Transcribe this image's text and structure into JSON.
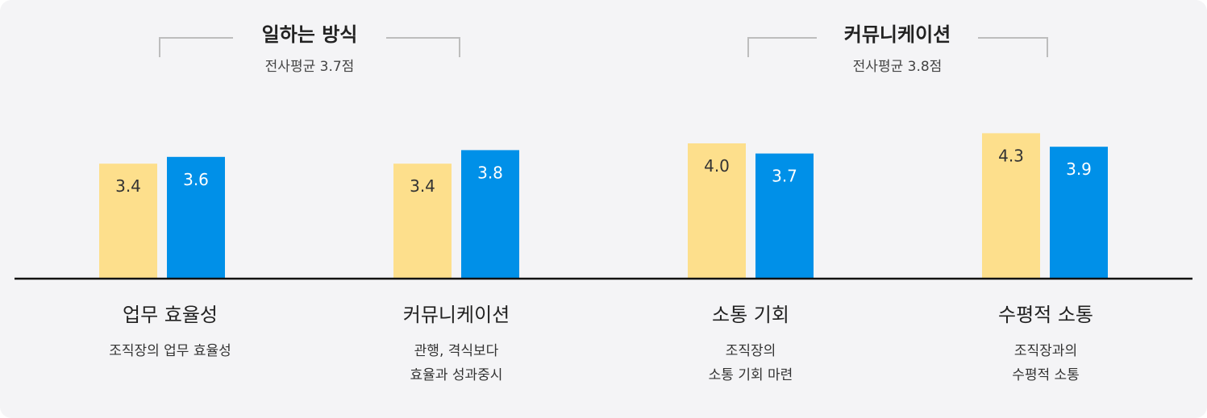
{
  "colors": {
    "series_a": "#fddf8c",
    "series_b": "#0090e8",
    "axis": "#111111",
    "bracket": "#bdbdbd"
  },
  "chart_data": {
    "type": "bar",
    "ylim": [
      0,
      5
    ],
    "groups": [
      {
        "title": "일하는 방식",
        "subtitle": "전사평균 3.7점",
        "categories": [
          0,
          1
        ]
      },
      {
        "title": "커뮤니케이션",
        "subtitle": "전사평균 3.8점",
        "categories": [
          2,
          3
        ]
      }
    ],
    "categories": [
      {
        "title": "업무 효율성",
        "desc": [
          "조직장의 업무 효율성"
        ]
      },
      {
        "title": "커뮤니케이션",
        "desc": [
          "관행, 격식보다",
          "효율과 성과중시"
        ]
      },
      {
        "title": "소통 기회",
        "desc": [
          "조직장의",
          "소통 기회 마련"
        ]
      },
      {
        "title": "수평적 소통",
        "desc": [
          "조직장과의",
          "수평적 소통"
        ]
      }
    ],
    "series": [
      {
        "values": [
          3.4,
          3.4,
          4.0,
          4.3
        ],
        "labels": [
          "3.4",
          "3.4",
          "4.0",
          "4.3"
        ]
      },
      {
        "values": [
          3.6,
          3.8,
          3.7,
          3.9
        ],
        "labels": [
          "3.6",
          "3.8",
          "3.7",
          "3.9"
        ]
      }
    ]
  }
}
